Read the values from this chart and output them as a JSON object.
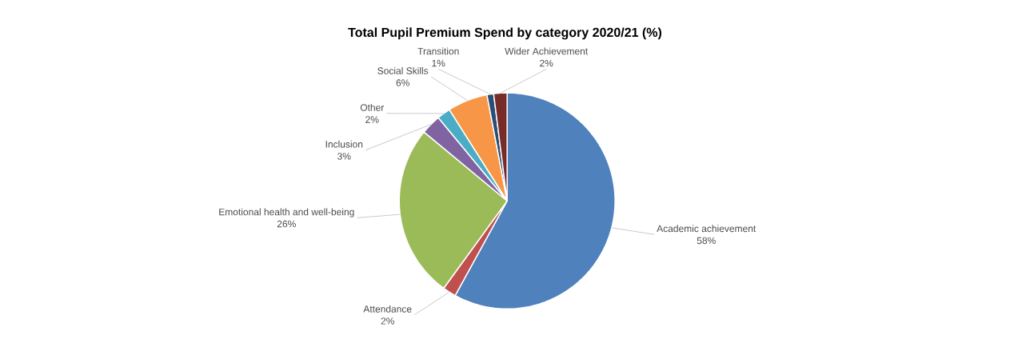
{
  "chart_data": {
    "type": "pie",
    "title": "Total Pupil Premium Spend by category 2020/21 (%)",
    "categories": [
      "Academic achievement",
      "Attendance",
      "Emotional health and well-being",
      "Inclusion",
      "Other",
      "Social Skills",
      "Transition",
      "Wider Achievement"
    ],
    "values": [
      58,
      2,
      26,
      3,
      2,
      6,
      1,
      2
    ],
    "value_labels": [
      "58%",
      "2%",
      "26%",
      "3%",
      "2%",
      "6%",
      "1%",
      "2%"
    ],
    "colors": [
      "#4f81bd",
      "#c0504d",
      "#9bbb59",
      "#8064a2",
      "#4bacc6",
      "#f79646",
      "#2c4d75",
      "#772c2a"
    ]
  }
}
